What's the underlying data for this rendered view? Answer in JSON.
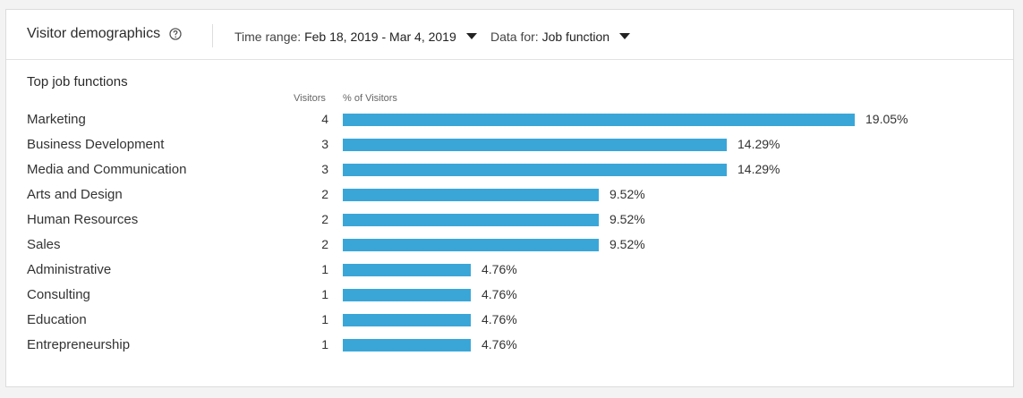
{
  "header": {
    "title": "Visitor demographics",
    "time_range_label": "Time range:",
    "time_range_value": "Feb 18, 2019 - Mar 4, 2019",
    "data_for_label": "Data for:",
    "data_for_value": "Job function"
  },
  "section": {
    "title": "Top job functions",
    "col_visitors": "Visitors",
    "col_percent": "% of Visitors"
  },
  "colors": {
    "bar": "#3aa6d8"
  },
  "chart_data": {
    "type": "bar",
    "categories": [
      "Marketing",
      "Business Development",
      "Media and Communication",
      "Arts and Design",
      "Human Resources",
      "Sales",
      "Administrative",
      "Consulting",
      "Education",
      "Entrepreneurship"
    ],
    "visitors": [
      "4",
      "3",
      "3",
      "2",
      "2",
      "2",
      "1",
      "1",
      "1",
      "1"
    ],
    "values": [
      19.05,
      14.29,
      14.29,
      9.52,
      9.52,
      9.52,
      4.76,
      4.76,
      4.76,
      4.76
    ],
    "percent_labels": [
      "19.05%",
      "14.29%",
      "14.29%",
      "9.52%",
      "9.52%",
      "9.52%",
      "4.76%",
      "4.76%",
      "4.76%",
      "4.76%"
    ]
  }
}
